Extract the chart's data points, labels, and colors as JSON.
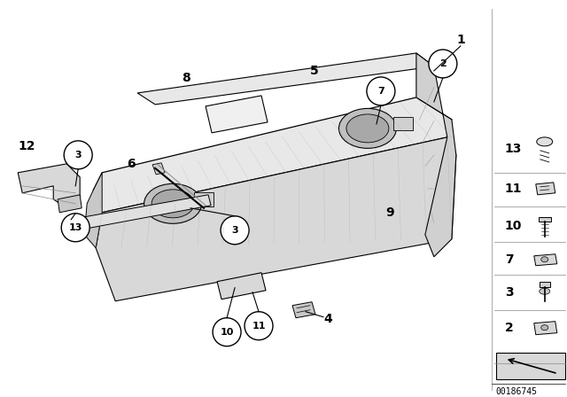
{
  "bg_color": "#ffffff",
  "diagram_number": "00186745",
  "text_color": "#000000",
  "line_color": "#000000",
  "shelf_color": "#f0f0f0",
  "shelf_dark": "#c8c8c8",
  "shelf_mid": "#e0e0e0"
}
